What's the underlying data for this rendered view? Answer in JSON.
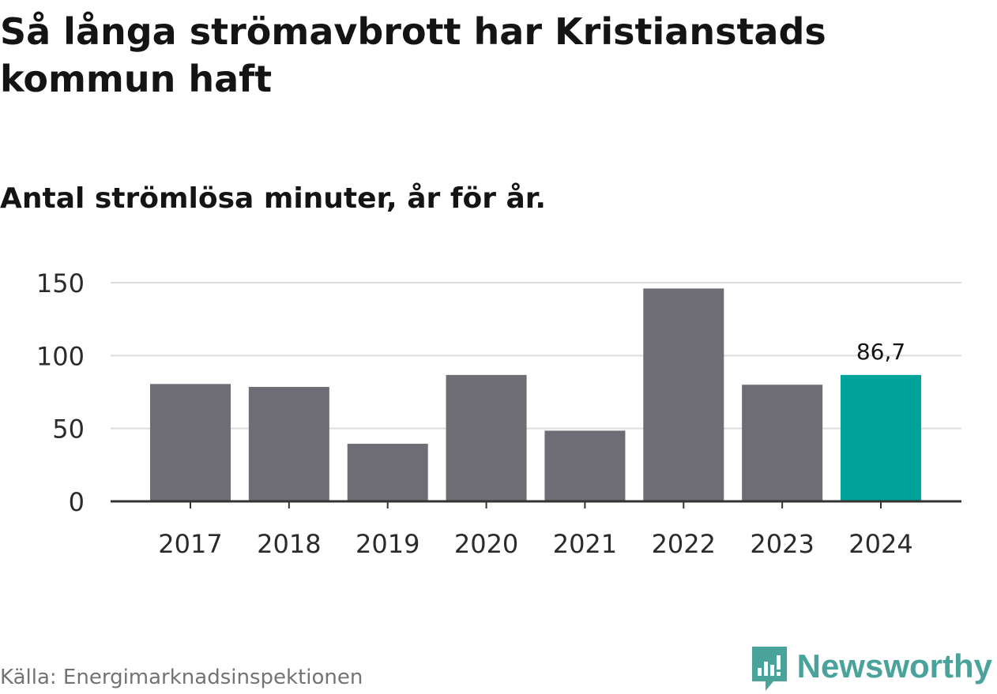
{
  "header": {
    "title": "Så långa strömavbrott har Kristianstads kommun haft",
    "subtitle": "Antal strömlösa minuter, år för år."
  },
  "footer": {
    "source": "Källa: Energimarknadsinspektionen",
    "brand": "Newsworthy",
    "brand_icon": "newsworthy-logo-icon"
  },
  "colors": {
    "bar": "#6e6d75",
    "highlight": "#00a39a",
    "grid": "#dcdcdc",
    "axis": "#333333",
    "brand": "#4aa39b"
  },
  "chart_data": {
    "type": "bar",
    "title": "Så långa strömavbrott har Kristianstads kommun haft",
    "subtitle": "Antal strömlösa minuter, år för år.",
    "xlabel": "",
    "ylabel": "",
    "categories": [
      "2017",
      "2018",
      "2019",
      "2020",
      "2021",
      "2022",
      "2023",
      "2024"
    ],
    "values": [
      80.5,
      78.5,
      39.5,
      86.7,
      48.5,
      146,
      80,
      86.7
    ],
    "ylim": [
      0,
      150
    ],
    "yticks": [
      0,
      50,
      100,
      150
    ],
    "grid": true,
    "highlight_index": 7,
    "data_labels": [
      {
        "index": 7,
        "text": "86,7"
      }
    ]
  }
}
